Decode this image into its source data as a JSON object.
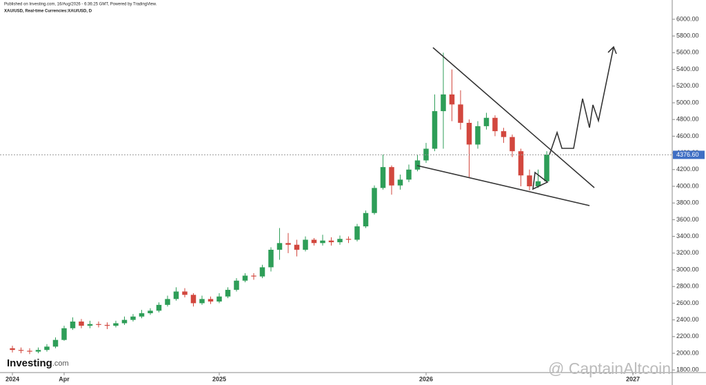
{
  "header": {
    "published": "Published on Investing.com, 16/Aug/2026 - 6:36:25 GMT, Powered by TradingView.",
    "symbol": "XAU/USD, Real-time Currencies:XAU/USD, D"
  },
  "logo": {
    "brand": "Investing",
    "suffix": ".com"
  },
  "watermark": "@ CaptainAltcoin",
  "chart_data": {
    "type": "candlestick",
    "x": [
      0,
      0.5,
      1,
      1.5,
      2,
      2.5,
      3,
      3.5,
      4,
      4.5,
      5,
      5.5,
      6,
      6.5,
      7,
      7.5,
      8,
      8.5,
      9,
      9.5,
      10,
      10.5,
      11,
      11.5,
      12,
      12.5,
      13,
      13.5,
      14,
      14.5,
      15,
      15.5,
      16,
      16.5,
      17,
      17.5,
      18,
      18.5,
      19,
      19.5,
      20,
      20.5,
      21,
      21.5,
      22,
      22.5,
      23,
      23.5,
      24,
      24.5,
      25,
      25.5,
      26,
      26.5,
      27,
      27.5,
      28,
      28.5,
      29,
      29.5,
      30,
      30.5,
      31
    ],
    "open": [
      2060,
      2040,
      2030,
      2020,
      2040,
      2080,
      2160,
      2300,
      2380,
      2330,
      2350,
      2340,
      2330,
      2360,
      2400,
      2440,
      2480,
      2510,
      2580,
      2650,
      2740,
      2700,
      2600,
      2650,
      2620,
      2680,
      2760,
      2870,
      2930,
      2920,
      3030,
      3240,
      3320,
      3300,
      3240,
      3360,
      3320,
      3350,
      3330,
      3370,
      3360,
      3520,
      3680,
      3980,
      4230,
      4010,
      4080,
      4200,
      4310,
      4450,
      4900,
      5100,
      4980,
      4760,
      4500,
      4720,
      4820,
      4660,
      4590,
      4420,
      4130,
      4000,
      4060
    ],
    "high": [
      2090,
      2070,
      2060,
      2070,
      2110,
      2190,
      2330,
      2430,
      2410,
      2390,
      2380,
      2370,
      2390,
      2440,
      2470,
      2520,
      2540,
      2610,
      2690,
      2790,
      2780,
      2720,
      2690,
      2680,
      2720,
      2790,
      2900,
      2960,
      2960,
      3060,
      3270,
      3500,
      3440,
      3360,
      3400,
      3380,
      3420,
      3390,
      3410,
      3400,
      3550,
      3710,
      4010,
      4380,
      4250,
      4140,
      4260,
      4380,
      4520,
      5100,
      5600,
      5400,
      5150,
      4800,
      4780,
      4880,
      4850,
      4700,
      4620,
      4450,
      4200,
      4200,
      4420
    ],
    "low": [
      2010,
      2000,
      1990,
      2000,
      2020,
      2060,
      2150,
      2280,
      2300,
      2300,
      2310,
      2290,
      2310,
      2340,
      2380,
      2420,
      2460,
      2490,
      2560,
      2630,
      2670,
      2560,
      2580,
      2590,
      2600,
      2660,
      2740,
      2850,
      2880,
      2900,
      2980,
      3120,
      3200,
      3160,
      3220,
      3290,
      3290,
      3290,
      3300,
      3320,
      3340,
      3500,
      3660,
      3960,
      3900,
      3960,
      4050,
      4180,
      4280,
      4420,
      4450,
      4780,
      4680,
      4100,
      4450,
      4680,
      4600,
      4520,
      4350,
      4000,
      3950,
      3980,
      4040
    ],
    "close": [
      2040,
      2030,
      2020,
      2040,
      2080,
      2160,
      2300,
      2380,
      2330,
      2350,
      2340,
      2330,
      2360,
      2400,
      2440,
      2480,
      2510,
      2580,
      2650,
      2740,
      2700,
      2600,
      2650,
      2620,
      2680,
      2760,
      2870,
      2930,
      2920,
      3030,
      3240,
      3320,
      3300,
      3240,
      3360,
      3320,
      3350,
      3330,
      3370,
      3360,
      3520,
      3680,
      3980,
      4230,
      4010,
      4080,
      4200,
      4310,
      4450,
      4900,
      5100,
      4980,
      4760,
      4500,
      4720,
      4820,
      4660,
      4590,
      4420,
      4130,
      4000,
      4060,
      4380
    ],
    "up_color": "#2e9e58",
    "down_color": "#d2473e",
    "xlim": [
      -0.72,
      38.28
    ],
    "xticks": [
      {
        "value": 0,
        "label": "2024"
      },
      {
        "value": 3,
        "label": "Apr"
      },
      {
        "value": 12,
        "label": "2025"
      },
      {
        "value": 24,
        "label": "2026"
      },
      {
        "value": 36,
        "label": "2027"
      }
    ],
    "ylim": [
      1769,
      6231
    ],
    "yticks": [
      {
        "value": 1800,
        "label": "1800.00"
      },
      {
        "value": 2000,
        "label": "2000.00"
      },
      {
        "value": 2200,
        "label": "2200.00"
      },
      {
        "value": 2400,
        "label": "2400.00"
      },
      {
        "value": 2600,
        "label": "2600.00"
      },
      {
        "value": 2800,
        "label": "2800.00"
      },
      {
        "value": 3000,
        "label": "3000.00"
      },
      {
        "value": 3200,
        "label": "3200.00"
      },
      {
        "value": 3400,
        "label": "3400.00"
      },
      {
        "value": 3600,
        "label": "3600.00"
      },
      {
        "value": 3800,
        "label": "3800.00"
      },
      {
        "value": 4000,
        "label": "4000.00"
      },
      {
        "value": 4200,
        "label": "4200.00"
      },
      {
        "value": 4400,
        "label": "4400.00"
      },
      {
        "value": 4600,
        "label": "4600.00"
      },
      {
        "value": 4800,
        "label": "4800.00"
      },
      {
        "value": 5000,
        "label": "5000.00"
      },
      {
        "value": 5200,
        "label": "5200.00"
      },
      {
        "value": 5400,
        "label": "5400.00"
      },
      {
        "value": 5600,
        "label": "5600.00"
      },
      {
        "value": 5800,
        "label": "5800.00"
      },
      {
        "value": 6000,
        "label": "6000.00"
      }
    ],
    "last_price": {
      "value": 4376.6,
      "label": "4376.60"
    },
    "last_price_color": "#3f6fc4"
  }
}
